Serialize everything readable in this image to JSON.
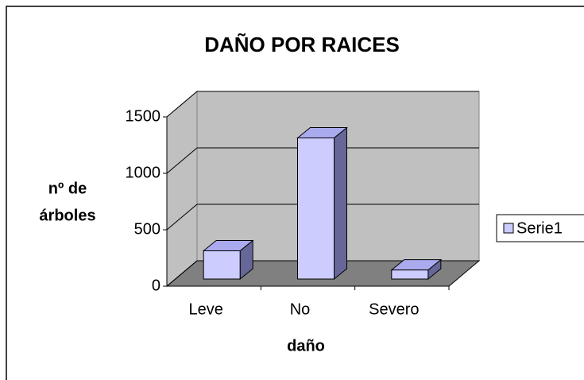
{
  "chart_data": {
    "type": "bar3d",
    "title": "DAÑO POR RAICES",
    "x_label": "daño",
    "y_label": [
      "nº de",
      "árboles"
    ],
    "categories": [
      "Leve",
      "No",
      "Severo"
    ],
    "series": [
      {
        "name": "Serie1",
        "color": "#ccccff",
        "values": [
          250,
          1250,
          80
        ]
      }
    ],
    "ylim": [
      0,
      1500
    ],
    "yticks": [
      0,
      500,
      1000,
      1500
    ],
    "grid": true,
    "legend": "right"
  }
}
